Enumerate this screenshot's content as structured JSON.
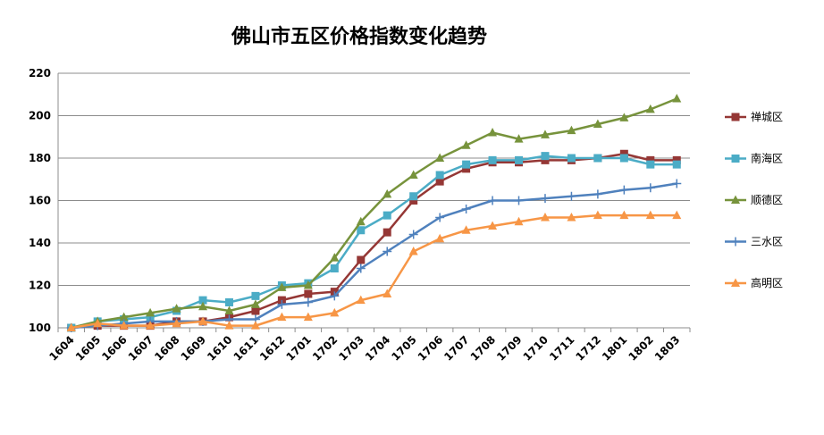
{
  "chart_data": {
    "type": "line",
    "title": "佛山市五区价格指数变化趋势",
    "xlabel": "",
    "ylabel": "",
    "ylim": [
      100,
      220
    ],
    "yticks": [
      "100",
      "120",
      "140",
      "160",
      "180",
      "200",
      "220"
    ],
    "grid": true,
    "legend_position": "right",
    "x": [
      "1604",
      "1605",
      "1606",
      "1607",
      "1608",
      "1609",
      "1610",
      "1611",
      "1612",
      "1701",
      "1702",
      "1703",
      "1704",
      "1705",
      "1706",
      "1707",
      "1708",
      "1709",
      "1710",
      "1711",
      "1712",
      "1801",
      "1802",
      "1803"
    ],
    "series": [
      {
        "name": "禅城区",
        "color": "#953735",
        "marker": "square",
        "values": [
          100,
          101,
          101,
          101,
          103,
          103,
          105,
          108,
          113,
          116,
          117,
          132,
          145,
          160,
          169,
          175,
          178,
          178,
          179,
          179,
          180,
          182,
          179,
          179
        ]
      },
      {
        "name": "南海区",
        "color": "#4bacc6",
        "marker": "square",
        "values": [
          100,
          103,
          104,
          105,
          108,
          113,
          112,
          115,
          120,
          121,
          128,
          146,
          153,
          162,
          172,
          177,
          179,
          179,
          181,
          180,
          180,
          180,
          177,
          177
        ]
      },
      {
        "name": "顺德区",
        "color": "#77933c",
        "marker": "triangle",
        "values": [
          100,
          103,
          105,
          107,
          109,
          110,
          108,
          111,
          119,
          120,
          133,
          150,
          163,
          172,
          180,
          186,
          192,
          189,
          191,
          193,
          196,
          199,
          203,
          208
        ]
      },
      {
        "name": "三水区",
        "color": "#4f81bd",
        "marker": "plus",
        "values": [
          100,
          101,
          102,
          103,
          103,
          103,
          104,
          104,
          111,
          112,
          115,
          128,
          136,
          144,
          152,
          156,
          160,
          160,
          161,
          162,
          163,
          165,
          166,
          168
        ]
      },
      {
        "name": "高明区",
        "color": "#f79646",
        "marker": "triangle",
        "values": [
          100,
          102,
          101,
          101,
          102,
          103,
          101,
          101,
          105,
          105,
          107,
          113,
          116,
          136,
          142,
          146,
          148,
          150,
          152,
          152,
          153,
          153,
          153,
          153
        ]
      }
    ]
  }
}
